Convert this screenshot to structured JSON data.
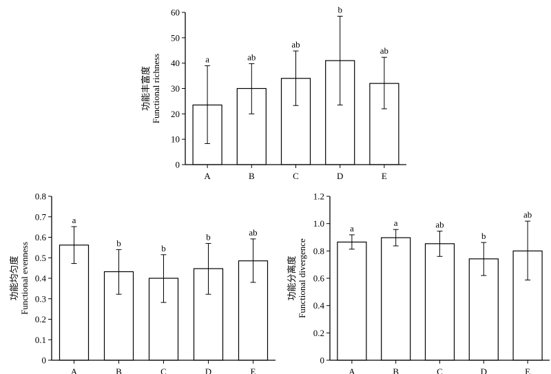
{
  "chart_data": [
    {
      "type": "bar",
      "ylabel_cn": "功能丰富度",
      "ylabel_en": "Functional richness",
      "categories": [
        "A",
        "B",
        "C",
        "D",
        "E"
      ],
      "values": [
        23.5,
        30.0,
        34.0,
        41.0,
        32.0
      ],
      "error_low": [
        8.3,
        20.0,
        23.3,
        23.5,
        22.0
      ],
      "error_high": [
        39.0,
        39.8,
        44.8,
        58.5,
        42.3
      ],
      "significance": [
        "a",
        "ab",
        "ab",
        "b",
        "ab"
      ],
      "ylim": [
        0,
        60
      ],
      "yticks": [
        "0",
        "10",
        "20",
        "30",
        "40",
        "50",
        "60"
      ]
    },
    {
      "type": "bar",
      "ylabel_cn": "功能均匀度",
      "ylabel_en": "Functional evenness",
      "categories": [
        "A",
        "B",
        "C",
        "D",
        "E"
      ],
      "values": [
        0.562,
        0.432,
        0.4,
        0.447,
        0.485
      ],
      "error_low": [
        0.472,
        0.322,
        0.282,
        0.322,
        0.38
      ],
      "error_high": [
        0.652,
        0.54,
        0.515,
        0.57,
        0.592
      ],
      "significance": [
        "a",
        "b",
        "b",
        "b",
        "ab"
      ],
      "ylim": [
        0,
        0.8
      ],
      "yticks": [
        "0",
        "0.1",
        "0.2",
        "0.3",
        "0.4",
        "0.5",
        "0.6",
        "0.7",
        "0.8"
      ]
    },
    {
      "type": "bar",
      "ylabel_cn": "功能分离度",
      "ylabel_en": "Functional divergence",
      "categories": [
        "A",
        "B",
        "C",
        "D",
        "E"
      ],
      "values": [
        0.865,
        0.897,
        0.853,
        0.742,
        0.8
      ],
      "error_low": [
        0.813,
        0.837,
        0.76,
        0.62,
        0.587
      ],
      "error_high": [
        0.918,
        0.957,
        0.945,
        0.862,
        1.018
      ],
      "significance": [
        "a",
        "a",
        "ab",
        "b",
        "ab"
      ],
      "ylim": [
        0,
        1.2
      ],
      "yticks": [
        "0",
        "0.2",
        "0.4",
        "0.6",
        "0.8",
        "1.0",
        "1.2"
      ]
    }
  ]
}
